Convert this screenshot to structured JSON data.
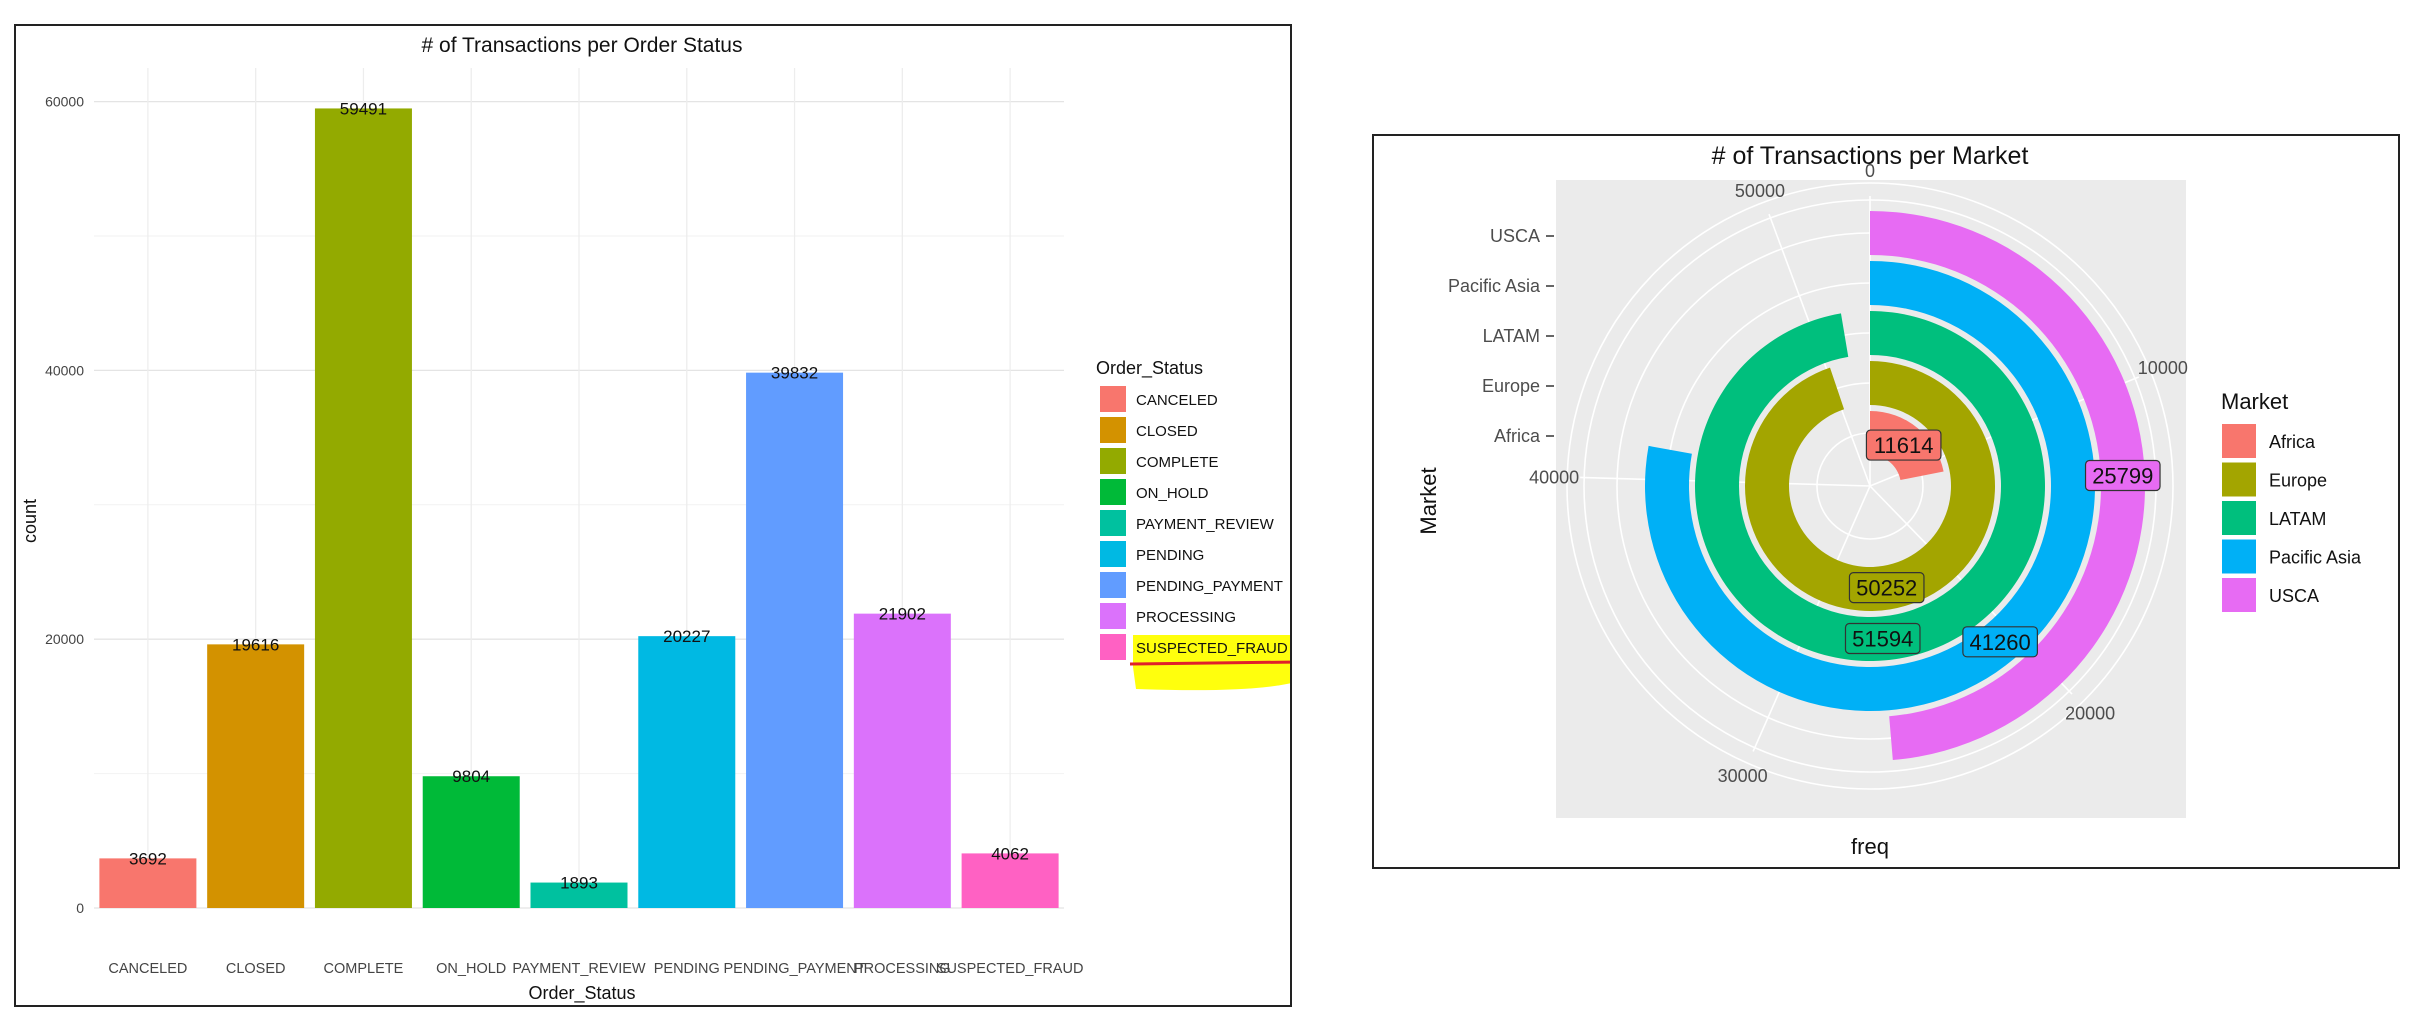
{
  "chart_data": [
    {
      "type": "bar",
      "title": "# of Transactions per Order Status",
      "xlabel": "Order_Status",
      "ylabel": "count",
      "categories": [
        "CANCELED",
        "CLOSED",
        "COMPLETE",
        "ON_HOLD",
        "PAYMENT_REVIEW",
        "PENDING",
        "PENDING_PAYMENT",
        "PROCESSING",
        "SUSPECTED_FRAUD"
      ],
      "values": [
        3692,
        19616,
        59491,
        9804,
        1893,
        20227,
        39832,
        21902,
        4062
      ],
      "colors": [
        "#F8766D",
        "#D39200",
        "#93AA00",
        "#00BA38",
        "#00C19F",
        "#00B9E3",
        "#619CFF",
        "#DB72FB",
        "#FF61C3"
      ],
      "yticks": [
        0,
        20000,
        40000,
        60000
      ],
      "ylim": [
        0,
        62500
      ],
      "grid": true,
      "legend": {
        "title": "Order_Status",
        "position": "right",
        "highlight": "SUSPECTED_FRAUD",
        "highlight_color": "#FFFF00",
        "underline_color": "#E0202B"
      }
    },
    {
      "type": "bar",
      "coord": "polar",
      "title": "# of Transactions per Market",
      "xlabel": "freq",
      "ylabel": "Market",
      "categories": [
        "Africa",
        "Europe",
        "LATAM",
        "Pacific Asia",
        "USCA"
      ],
      "values": [
        11614,
        50252,
        51594,
        41260,
        25799
      ],
      "colors": [
        "#F8766D",
        "#A3A500",
        "#00BF7D",
        "#00B0F6",
        "#E76BF3"
      ],
      "angle_ticks": [
        0,
        10000,
        20000,
        30000,
        40000,
        50000
      ],
      "angle_max": 53000,
      "grid": true,
      "legend": {
        "title": "Market",
        "position": "right"
      }
    }
  ]
}
